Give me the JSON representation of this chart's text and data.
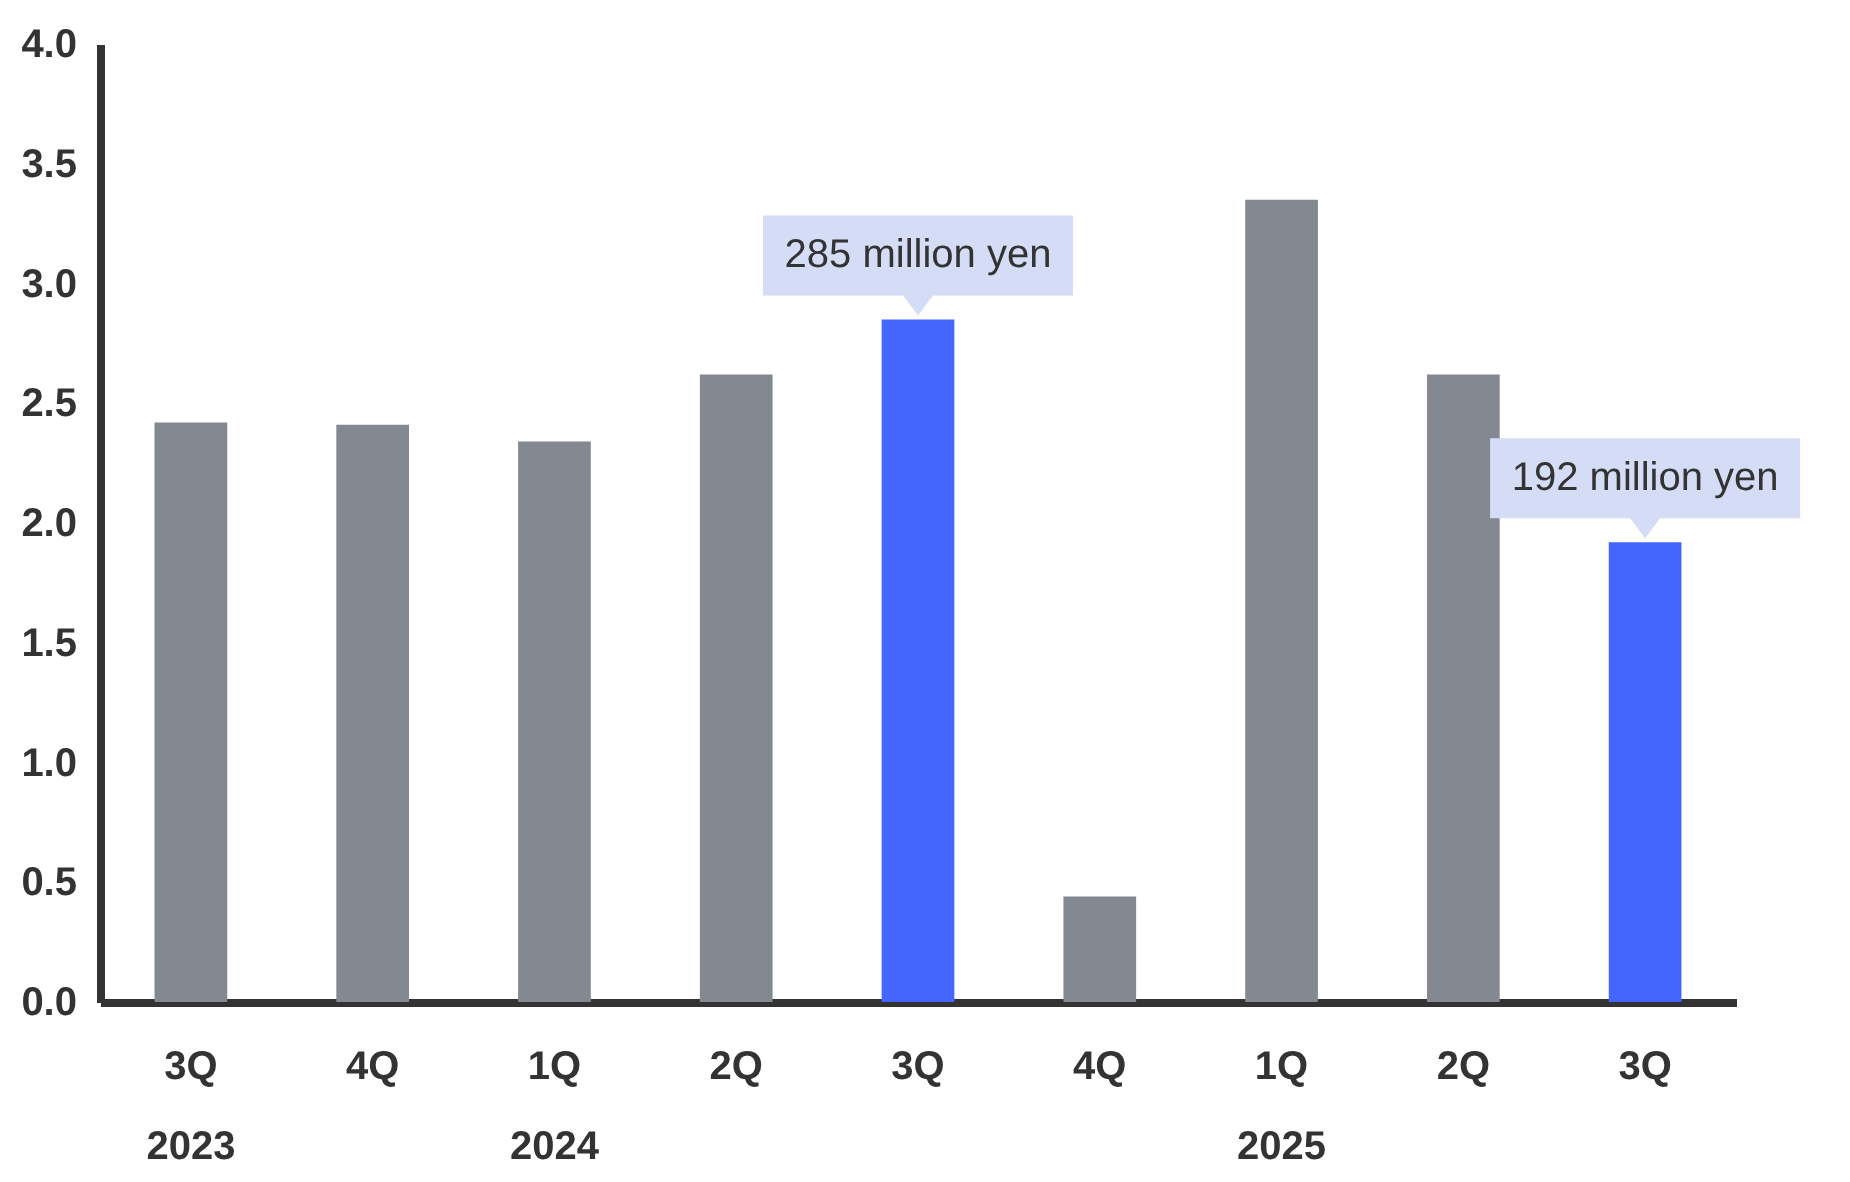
{
  "chart_data": {
    "type": "bar",
    "categories": [
      "3Q\n2023",
      "4Q",
      "1Q\n2024",
      "2Q",
      "3Q",
      "4Q",
      "1Q\n2025",
      "2Q",
      "3Q"
    ],
    "values": [
      2.42,
      2.41,
      2.34,
      2.62,
      2.85,
      0.44,
      3.35,
      2.62,
      1.92
    ],
    "colors": [
      "#838891",
      "#838891",
      "#838891",
      "#838891",
      "#4466ff",
      "#838891",
      "#838891",
      "#838891",
      "#4466ff"
    ],
    "annotations": [
      "285 million yen",
      "192 million yen"
    ],
    "ylim": [
      0,
      4
    ],
    "yticks": [
      {
        "value": 0,
        "label": "0.0"
      },
      0.5,
      {
        "value": 1,
        "label": "1.0"
      },
      1.5,
      {
        "value": 2,
        "label": "2.0"
      },
      2.5,
      {
        "value": 3,
        "label": "3.0"
      },
      3.5,
      {
        "value": 4,
        "label": "4.0"
      }
    ],
    "grid": false
  }
}
